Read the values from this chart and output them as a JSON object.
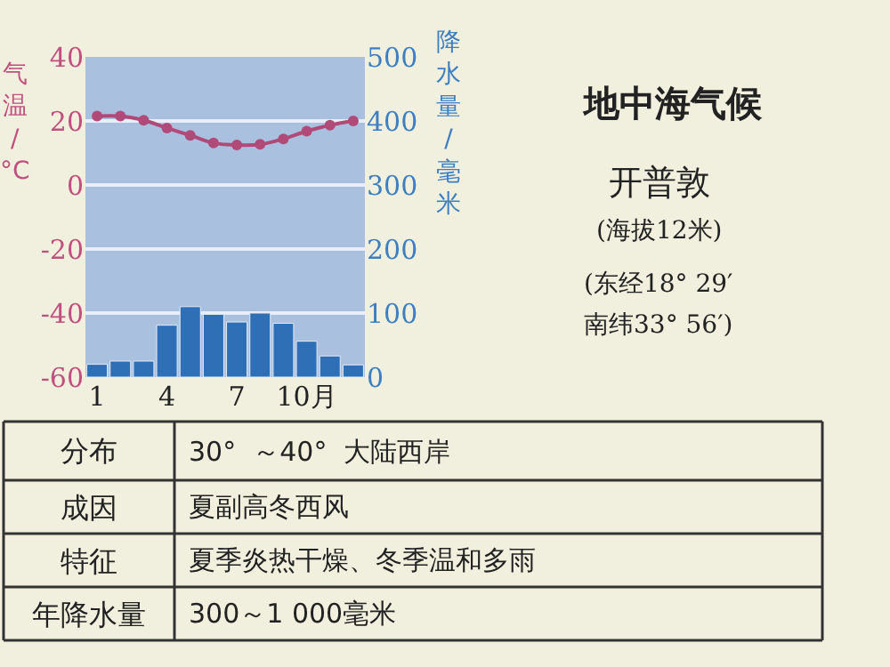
{
  "chart_data": {
    "type": "bar",
    "title": "地中海气候",
    "subtitle": "开普敦",
    "ylabel": "气温/°C",
    "y2label": "降水量/毫米",
    "categories": [
      "1",
      null,
      null,
      "4",
      null,
      null,
      "7",
      null,
      null,
      "10月",
      null,
      null
    ],
    "series": [
      {
        "axis": "y2",
        "color": "#2e6fb5",
        "values": [
          20,
          25,
          25,
          81,
          110,
          98,
          86,
          100,
          84,
          56,
          33,
          19
        ]
      },
      {
        "type": "line",
        "axis": "y",
        "color": "#b04a78",
        "marker": "circle",
        "values": [
          21.5,
          21.5,
          20.2,
          17.8,
          15.5,
          13.1,
          12.5,
          12.7,
          14.4,
          16.8,
          18.7,
          20
        ]
      }
    ],
    "ylim": [
      -60,
      40
    ],
    "yticks": [
      -60,
      -40,
      -20,
      0,
      20,
      40
    ],
    "y2lim": [
      0,
      500
    ],
    "y2ticks": [
      0,
      100,
      200,
      300,
      400,
      500
    ],
    "grid": "y",
    "annotations": [
      "(海拔12米)",
      "(东经18° 29′",
      "南纬33° 56′)",
      "分布",
      "30°  ～40°  大陆西岸",
      "成因",
      "夏副高冬西风",
      "特征",
      "夏季炎热干燥、冬季温和多雨",
      "年降水量",
      "300～1 000毫米"
    ]
  }
}
